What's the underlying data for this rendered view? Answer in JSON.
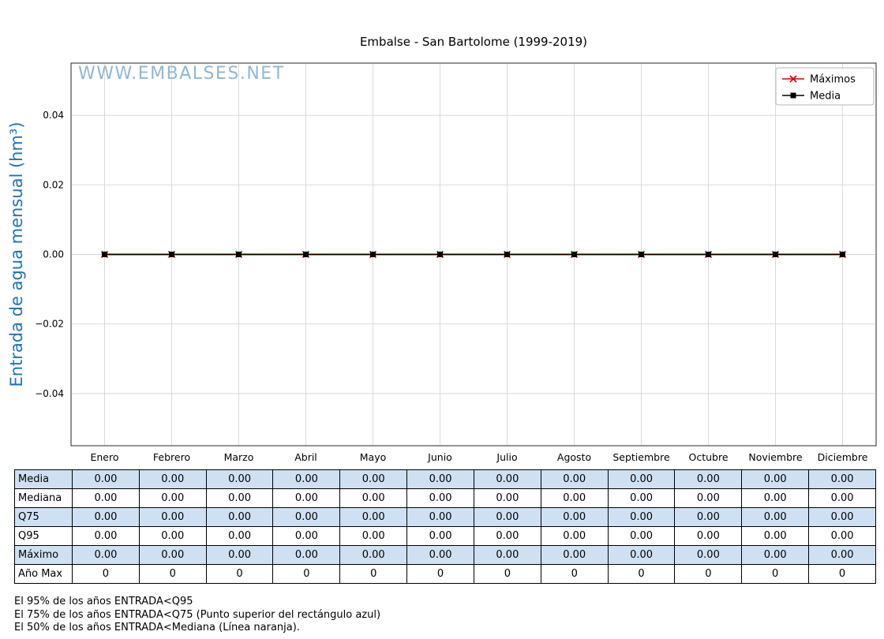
{
  "watermark": "WWW.EMBALSES.NET",
  "colors": {
    "axis_label": "#2272b4",
    "watermark": "#8cb8d8",
    "grid": "#d6d6d6",
    "plot_border": "#262626",
    "table_row_highlight": "#cfe0f3",
    "legend_border": "#b5b5b5"
  },
  "chart_data": {
    "type": "line",
    "title": "Embalse - San Bartolome (1999-2019)",
    "ylabel": "Entrada de agua mensual (hm³)",
    "xlabel": "",
    "categories": [
      "Enero",
      "Febrero",
      "Marzo",
      "Abril",
      "Mayo",
      "Junio",
      "Julio",
      "Agosto",
      "Septiembre",
      "Octubre",
      "Noviembre",
      "Diciembre"
    ],
    "series": [
      {
        "name": "Mediana",
        "color": "#ff7f0e",
        "marker": "none",
        "in_legend": false,
        "values": [
          0,
          0,
          0,
          0,
          0,
          0,
          0,
          0,
          0,
          0,
          0,
          0
        ]
      },
      {
        "name": "Máximos",
        "color": "#e00000",
        "marker": "x",
        "in_legend": true,
        "values": [
          0,
          0,
          0,
          0,
          0,
          0,
          0,
          0,
          0,
          0,
          0,
          0
        ]
      },
      {
        "name": "Media",
        "color": "#000000",
        "marker": "square",
        "in_legend": true,
        "values": [
          0,
          0,
          0,
          0,
          0,
          0,
          0,
          0,
          0,
          0,
          0,
          0
        ]
      }
    ],
    "ylim": [
      -0.055,
      0.055
    ],
    "yticks": [
      0.04,
      0.02,
      0,
      -0.02,
      -0.04
    ],
    "grid": true,
    "legend_position": "top-right"
  },
  "table": {
    "columns": [
      "Enero",
      "Febrero",
      "Marzo",
      "Abril",
      "Mayo",
      "Junio",
      "Julio",
      "Agosto",
      "Septiembre",
      "Octubre",
      "Noviembre",
      "Diciembre"
    ],
    "rows": [
      {
        "label": "Media",
        "highlight": true,
        "values": [
          "0.00",
          "0.00",
          "0.00",
          "0.00",
          "0.00",
          "0.00",
          "0.00",
          "0.00",
          "0.00",
          "0.00",
          "0.00",
          "0.00"
        ]
      },
      {
        "label": "Mediana",
        "highlight": false,
        "values": [
          "0.00",
          "0.00",
          "0.00",
          "0.00",
          "0.00",
          "0.00",
          "0.00",
          "0.00",
          "0.00",
          "0.00",
          "0.00",
          "0.00"
        ]
      },
      {
        "label": "Q75",
        "highlight": true,
        "values": [
          "0.00",
          "0.00",
          "0.00",
          "0.00",
          "0.00",
          "0.00",
          "0.00",
          "0.00",
          "0.00",
          "0.00",
          "0.00",
          "0.00"
        ]
      },
      {
        "label": "Q95",
        "highlight": false,
        "values": [
          "0.00",
          "0.00",
          "0.00",
          "0.00",
          "0.00",
          "0.00",
          "0.00",
          "0.00",
          "0.00",
          "0.00",
          "0.00",
          "0.00"
        ]
      },
      {
        "label": "Máximo",
        "highlight": true,
        "values": [
          "0.00",
          "0.00",
          "0.00",
          "0.00",
          "0.00",
          "0.00",
          "0.00",
          "0.00",
          "0.00",
          "0.00",
          "0.00",
          "0.00"
        ]
      },
      {
        "label": "Año Max",
        "highlight": false,
        "values": [
          "0",
          "0",
          "0",
          "0",
          "0",
          "0",
          "0",
          "0",
          "0",
          "0",
          "0",
          "0"
        ]
      }
    ]
  },
  "footer_lines": [
    "El 95% de los años ENTRADA<Q95",
    "El 75% de los años ENTRADA<Q75 (Punto superior del rectángulo azul)",
    "El 50% de los años ENTRADA<Mediana (Línea naranja)."
  ]
}
